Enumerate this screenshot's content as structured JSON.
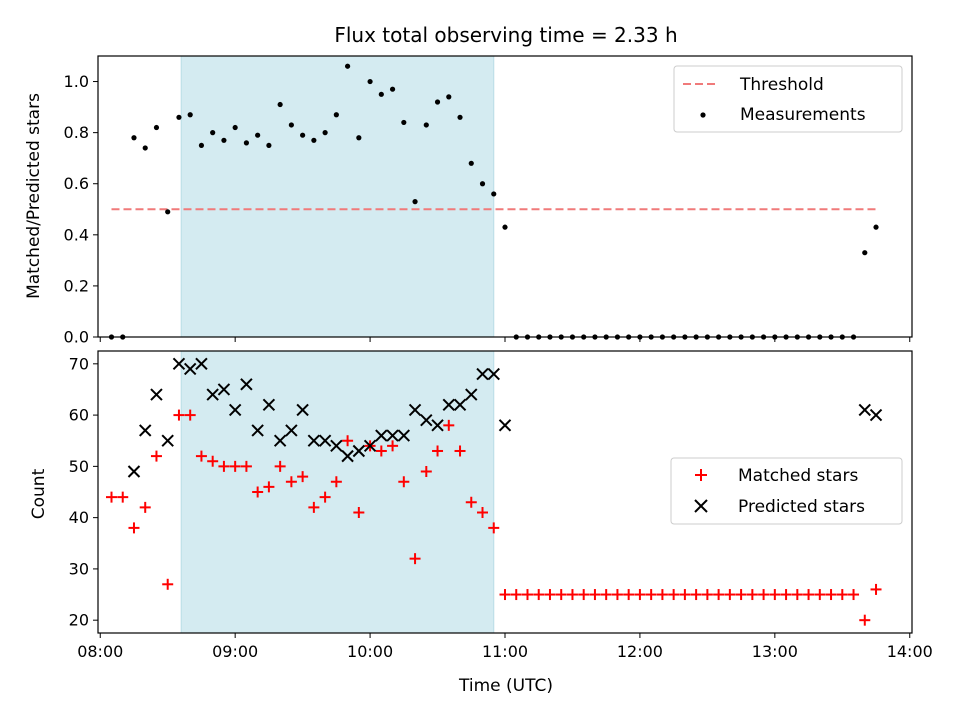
{
  "chart_data": [
    {
      "type": "scatter",
      "title": "Flux total observing time = 2.33 h",
      "ylabel": "Matched/Predicted stars",
      "xlabel": "",
      "ylim": [
        0,
        1.1
      ],
      "yticks": [
        "0.0",
        "0.2",
        "0.4",
        "0.6",
        "0.8",
        "1.0"
      ],
      "xlim": [
        "07:59",
        "14:01"
      ],
      "shaded_region": [
        "08:36",
        "10:55"
      ],
      "shade_color": "#d4ebf1",
      "legend_position": "upper right",
      "series": [
        {
          "name": "Threshold",
          "kind": "dashed-line",
          "color": "#f07a7a",
          "x": [
            "08:05",
            "13:46"
          ],
          "y": [
            0.5,
            0.5
          ]
        },
        {
          "name": "Measurements",
          "kind": "points",
          "color": "#000000",
          "x": [
            "08:05",
            "08:10",
            "08:15",
            "08:20",
            "08:25",
            "08:30",
            "08:35",
            "08:40",
            "08:45",
            "08:50",
            "08:55",
            "09:00",
            "09:05",
            "09:10",
            "09:15",
            "09:20",
            "09:25",
            "09:30",
            "09:35",
            "09:40",
            "09:45",
            "09:50",
            "09:55",
            "10:00",
            "10:05",
            "10:10",
            "10:15",
            "10:20",
            "10:25",
            "10:30",
            "10:35",
            "10:40",
            "10:45",
            "10:50",
            "10:55",
            "11:00",
            "11:05",
            "11:10",
            "11:15",
            "11:20",
            "11:25",
            "11:30",
            "11:35",
            "11:40",
            "11:45",
            "11:50",
            "11:55",
            "12:00",
            "12:05",
            "12:10",
            "12:15",
            "12:20",
            "12:25",
            "12:30",
            "12:35",
            "12:40",
            "12:45",
            "12:50",
            "12:55",
            "13:00",
            "13:05",
            "13:10",
            "13:15",
            "13:20",
            "13:25",
            "13:30",
            "13:35",
            "13:40",
            "13:45"
          ],
          "y": [
            0.0,
            0.0,
            0.78,
            0.74,
            0.82,
            0.49,
            0.86,
            0.87,
            0.75,
            0.8,
            0.77,
            0.82,
            0.76,
            0.79,
            0.75,
            0.91,
            0.83,
            0.79,
            0.77,
            0.8,
            0.87,
            1.06,
            0.78,
            1.0,
            0.95,
            0.97,
            0.84,
            0.53,
            0.83,
            0.92,
            0.94,
            0.86,
            0.68,
            0.6,
            0.56,
            0.43,
            0.0,
            0.0,
            0.0,
            0.0,
            0.0,
            0.0,
            0.0,
            0.0,
            0.0,
            0.0,
            0.0,
            0.0,
            0.0,
            0.0,
            0.0,
            0.0,
            0.0,
            0.0,
            0.0,
            0.0,
            0.0,
            0.0,
            0.0,
            0.0,
            0.0,
            0.0,
            0.0,
            0.0,
            0.0,
            0.0,
            0.0,
            0.33,
            0.43
          ]
        }
      ]
    },
    {
      "type": "scatter",
      "title": "",
      "ylabel": "Count",
      "xlabel": "Time (UTC)",
      "ylim": [
        17.5,
        72.5
      ],
      "yticks": [
        "20",
        "30",
        "40",
        "50",
        "60",
        "70"
      ],
      "xlim": [
        "07:59",
        "14:01"
      ],
      "xticks": [
        "08:00",
        "09:00",
        "10:00",
        "11:00",
        "12:00",
        "13:00",
        "14:00"
      ],
      "shaded_region": [
        "08:36",
        "10:55"
      ],
      "shade_color": "#d4ebf1",
      "legend_position": "center right",
      "series": [
        {
          "name": "Matched stars",
          "marker": "plus",
          "color": "#ff0000",
          "x": [
            "08:05",
            "08:10",
            "08:15",
            "08:20",
            "08:25",
            "08:30",
            "08:35",
            "08:40",
            "08:45",
            "08:50",
            "08:55",
            "09:00",
            "09:05",
            "09:10",
            "09:15",
            "09:20",
            "09:25",
            "09:30",
            "09:35",
            "09:40",
            "09:45",
            "09:50",
            "09:55",
            "10:00",
            "10:05",
            "10:10",
            "10:15",
            "10:20",
            "10:25",
            "10:30",
            "10:35",
            "10:40",
            "10:45",
            "10:50",
            "10:55",
            "11:00",
            "11:05",
            "11:10",
            "11:15",
            "11:20",
            "11:25",
            "11:30",
            "11:35",
            "11:40",
            "11:45",
            "11:50",
            "11:55",
            "12:00",
            "12:05",
            "12:10",
            "12:15",
            "12:20",
            "12:25",
            "12:30",
            "12:35",
            "12:40",
            "12:45",
            "12:50",
            "12:55",
            "13:00",
            "13:05",
            "13:10",
            "13:15",
            "13:20",
            "13:25",
            "13:30",
            "13:35",
            "13:40",
            "13:45"
          ],
          "y": [
            44,
            44,
            38,
            42,
            52,
            27,
            60,
            60,
            52,
            51,
            50,
            50,
            50,
            45,
            46,
            50,
            47,
            48,
            42,
            44,
            47,
            55,
            41,
            54,
            53,
            54,
            47,
            32,
            49,
            53,
            58,
            53,
            43,
            41,
            38,
            25,
            25,
            25,
            25,
            25,
            25,
            25,
            25,
            25,
            25,
            25,
            25,
            25,
            25,
            25,
            25,
            25,
            25,
            25,
            25,
            25,
            25,
            25,
            25,
            25,
            25,
            25,
            25,
            25,
            25,
            25,
            25,
            20,
            26
          ]
        },
        {
          "name": "Predicted stars",
          "marker": "x",
          "color": "#000000",
          "x": [
            "08:15",
            "08:20",
            "08:25",
            "08:30",
            "08:35",
            "08:40",
            "08:45",
            "08:50",
            "08:55",
            "09:00",
            "09:05",
            "09:10",
            "09:15",
            "09:20",
            "09:25",
            "09:30",
            "09:35",
            "09:40",
            "09:45",
            "09:50",
            "09:55",
            "10:00",
            "10:05",
            "10:10",
            "10:15",
            "10:20",
            "10:25",
            "10:30",
            "10:35",
            "10:40",
            "10:45",
            "10:50",
            "10:55",
            "11:00",
            "13:40",
            "13:45"
          ],
          "y": [
            49,
            57,
            64,
            55,
            70,
            69,
            70,
            64,
            65,
            61,
            66,
            57,
            62,
            55,
            57,
            61,
            55,
            55,
            54,
            52,
            53,
            54,
            56,
            56,
            56,
            61,
            59,
            58,
            62,
            62,
            64,
            68,
            68,
            58,
            61,
            60
          ]
        }
      ]
    }
  ]
}
